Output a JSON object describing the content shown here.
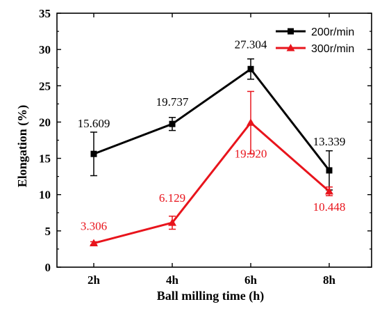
{
  "chart_data": {
    "type": "line",
    "categories": [
      "2h",
      "4h",
      "6h",
      "8h"
    ],
    "xlabel": "Ball milling time (h)",
    "ylabel": "Elongation (%)",
    "ylim": [
      0,
      35
    ],
    "yticks": [
      "0",
      "5",
      "10",
      "15",
      "20",
      "25",
      "30",
      "35"
    ],
    "grid": false,
    "legend_position": "top-right",
    "series": [
      {
        "name": "200r/min",
        "color": "#000000",
        "marker": "square",
        "values": [
          15.609,
          19.737,
          27.304,
          13.339
        ],
        "errors": [
          3.0,
          0.9,
          1.4,
          2.7
        ],
        "labels": [
          "15.609",
          "19.737",
          "27.304",
          "13.339"
        ]
      },
      {
        "name": "300r/min",
        "color": "#e8141c",
        "marker": "triangle",
        "values": [
          3.306,
          6.129,
          19.92,
          10.448
        ],
        "errors": [
          0.2,
          0.9,
          4.3,
          0.6
        ],
        "labels": [
          "3.306",
          "6.129",
          "19.920",
          "10.448"
        ]
      }
    ]
  }
}
